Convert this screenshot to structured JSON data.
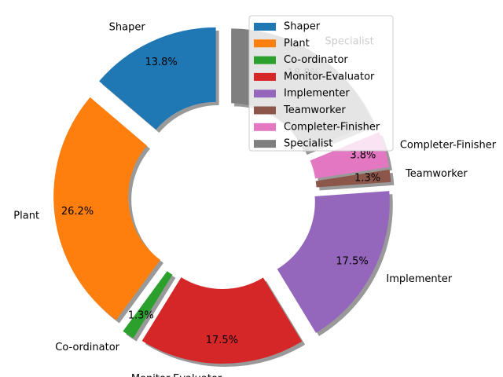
{
  "chart_data": {
    "type": "donut",
    "categories": [
      "Shaper",
      "Plant",
      "Co-ordinator",
      "Monitor-Evaluator",
      "Implementer",
      "Teamworker",
      "Completer-Finisher",
      "Specialist"
    ],
    "values": [
      13.8,
      26.2,
      1.3,
      17.5,
      17.5,
      1.3,
      3.8,
      18.8
    ],
    "value_labels": [
      "13.8%",
      "26.2%",
      "1.3%",
      "17.5%",
      "17.5%",
      "1.3%",
      "3.8%",
      "18.8%"
    ],
    "colors": [
      "#1f77b4",
      "#ff7f0e",
      "#2ca02c",
      "#d62728",
      "#9467bd",
      "#8c564b",
      "#e377c2",
      "#7f7f7f"
    ],
    "shadow": true,
    "legend": "upper right"
  }
}
